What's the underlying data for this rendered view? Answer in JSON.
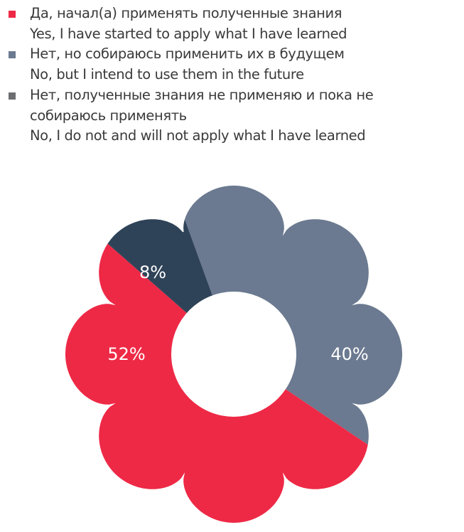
{
  "chart_data": {
    "type": "pie",
    "style": "flower-donut",
    "legend_position": "top-left",
    "series": [
      {
        "name": "Да, начал(а) применять полученные знания",
        "name_en": "Yes, I have started to apply what I have learned",
        "value": 52,
        "label": "52%",
        "color": "#ee2946",
        "legend_color": "#ee2946"
      },
      {
        "name": "Нет, но собираюсь применить их в будущем",
        "name_en": "No, but I intend to use them in the future",
        "value": 40,
        "label": "40%",
        "color": "#6b7a90",
        "legend_color": "#6b7a90"
      },
      {
        "name": "Нет, полученные знания не применяю и пока не собираюсь применять",
        "name_line1": "Нет, полученные знания не применяю и пока не",
        "name_line2": "собираюсь применять",
        "name_en": "No, I do not and will not apply what I have learned",
        "value": 8,
        "label": "8%",
        "color": "#2f4358",
        "legend_color": "#6d6e71"
      }
    ]
  }
}
